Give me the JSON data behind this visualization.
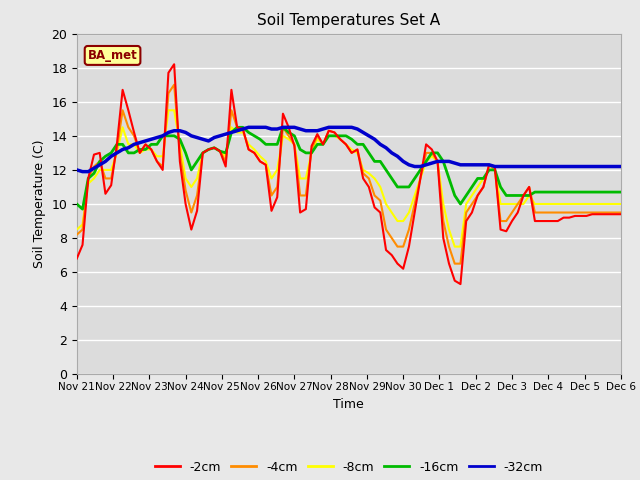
{
  "title": "Soil Temperatures Set A",
  "xlabel": "Time",
  "ylabel": "Soil Temperature (C)",
  "ylim": [
    0,
    20
  ],
  "yticks": [
    0,
    2,
    4,
    6,
    8,
    10,
    12,
    14,
    16,
    18,
    20
  ],
  "xtick_labels": [
    "Nov 21",
    "Nov 22",
    "Nov 23",
    "Nov 24",
    "Nov 25",
    "Nov 26",
    "Nov 27",
    "Nov 28",
    "Nov 29",
    "Nov 30",
    "Dec 1",
    "Dec 2",
    "Dec 3",
    "Dec 4",
    "Dec 5",
    "Dec 6"
  ],
  "fig_bg_color": "#e8e8e8",
  "plot_bg_color": "#dcdcdc",
  "grid_color": "#ffffff",
  "annotation_label": "BA_met",
  "annotation_bg": "#ffff99",
  "annotation_border": "#8b0000",
  "series_colors": {
    "-2cm": "#ff0000",
    "-4cm": "#ff8c00",
    "-8cm": "#ffff00",
    "-16cm": "#00bb00",
    "-32cm": "#0000cc"
  },
  "series_linewidths": {
    "-2cm": 1.5,
    "-4cm": 1.5,
    "-8cm": 1.5,
    "-16cm": 2.0,
    "-32cm": 2.5
  },
  "t_2cm": [
    6.8,
    7.6,
    11.5,
    12.9,
    13.0,
    10.6,
    11.1,
    13.5,
    16.7,
    15.5,
    14.2,
    13.0,
    13.5,
    13.2,
    12.5,
    12.0,
    17.7,
    18.2,
    12.5,
    10.0,
    8.5,
    9.6,
    13.0,
    13.2,
    13.3,
    13.1,
    12.2,
    16.7,
    14.5,
    14.4,
    13.2,
    13.0,
    12.5,
    12.3,
    9.6,
    10.4,
    15.3,
    14.5,
    13.4,
    9.5,
    9.7,
    13.4,
    14.1,
    13.5,
    14.3,
    14.2,
    13.8,
    13.5,
    13.0,
    13.2,
    11.5,
    11.0,
    9.8,
    9.5,
    7.3,
    7.0,
    6.5,
    6.2,
    7.5,
    9.5,
    11.5,
    13.5,
    13.2,
    12.5,
    8.0,
    6.5,
    5.5,
    5.3,
    9.0,
    9.5,
    10.5,
    11.0,
    12.3,
    12.2,
    8.5,
    8.4,
    9.0,
    9.5,
    10.5,
    11.0,
    9.0,
    9.0,
    9.0,
    9.0,
    9.0,
    9.2,
    9.2,
    9.3,
    9.3,
    9.3,
    9.4,
    9.4,
    9.4,
    9.4,
    9.4,
    9.4
  ],
  "t_4cm": [
    8.2,
    8.5,
    11.5,
    12.2,
    12.5,
    11.5,
    11.5,
    13.2,
    15.5,
    14.5,
    14.0,
    13.0,
    13.5,
    13.2,
    12.5,
    12.2,
    16.5,
    17.0,
    13.0,
    10.8,
    9.5,
    10.5,
    13.0,
    13.2,
    13.3,
    13.1,
    12.5,
    15.5,
    14.5,
    14.4,
    13.2,
    13.0,
    12.5,
    12.3,
    10.5,
    11.0,
    14.5,
    14.0,
    13.5,
    10.5,
    10.5,
    13.2,
    14.0,
    13.5,
    14.3,
    14.2,
    13.8,
    13.5,
    13.0,
    13.2,
    11.8,
    11.5,
    10.5,
    10.2,
    8.5,
    8.0,
    7.5,
    7.5,
    8.5,
    10.0,
    11.5,
    13.0,
    13.0,
    12.5,
    9.0,
    7.5,
    6.5,
    6.5,
    9.5,
    10.0,
    10.5,
    11.0,
    12.3,
    12.0,
    9.0,
    9.0,
    9.5,
    10.0,
    10.5,
    11.0,
    9.5,
    9.5,
    9.5,
    9.5,
    9.5,
    9.5,
    9.5,
    9.5,
    9.5,
    9.5,
    9.5,
    9.5,
    9.5,
    9.5,
    9.5,
    9.5
  ],
  "t_8cm": [
    8.5,
    8.8,
    11.2,
    11.5,
    12.0,
    12.0,
    12.0,
    13.0,
    14.5,
    13.5,
    13.5,
    13.0,
    13.2,
    13.2,
    12.8,
    12.8,
    15.5,
    15.5,
    13.5,
    11.5,
    11.0,
    11.5,
    13.0,
    13.2,
    13.3,
    13.1,
    12.8,
    14.5,
    14.2,
    14.2,
    13.5,
    13.2,
    12.8,
    12.5,
    11.5,
    12.0,
    14.0,
    13.8,
    13.5,
    11.5,
    11.5,
    13.0,
    13.8,
    13.5,
    14.0,
    14.0,
    13.8,
    13.5,
    13.2,
    13.0,
    12.0,
    11.8,
    11.5,
    11.0,
    10.0,
    9.5,
    9.0,
    9.0,
    9.5,
    10.5,
    11.5,
    12.5,
    12.8,
    12.5,
    10.0,
    8.5,
    7.5,
    7.5,
    10.0,
    10.5,
    11.0,
    11.5,
    12.0,
    12.0,
    10.0,
    10.0,
    10.0,
    10.0,
    10.0,
    10.5,
    10.0,
    10.0,
    10.0,
    10.0,
    10.0,
    10.0,
    10.0,
    10.0,
    10.0,
    10.0,
    10.0,
    10.0,
    10.0,
    10.0,
    10.0,
    10.0
  ],
  "t_16cm": [
    10.0,
    9.7,
    11.5,
    11.8,
    12.5,
    12.8,
    13.0,
    13.5,
    13.5,
    13.0,
    13.0,
    13.2,
    13.2,
    13.5,
    13.5,
    14.0,
    14.0,
    14.0,
    13.8,
    13.0,
    12.0,
    12.5,
    13.0,
    13.2,
    13.3,
    13.1,
    13.0,
    14.2,
    14.5,
    14.5,
    14.2,
    14.0,
    13.8,
    13.5,
    13.5,
    13.5,
    14.5,
    14.2,
    14.0,
    13.2,
    13.0,
    13.0,
    13.5,
    13.5,
    14.0,
    14.0,
    14.0,
    14.0,
    13.8,
    13.5,
    13.5,
    13.0,
    12.5,
    12.5,
    12.0,
    11.5,
    11.0,
    11.0,
    11.0,
    11.5,
    12.0,
    12.5,
    13.0,
    13.0,
    12.5,
    11.5,
    10.5,
    10.0,
    10.5,
    11.0,
    11.5,
    11.5,
    12.0,
    12.0,
    11.0,
    10.5,
    10.5,
    10.5,
    10.5,
    10.5,
    10.7,
    10.7,
    10.7,
    10.7,
    10.7,
    10.7,
    10.7,
    10.7,
    10.7,
    10.7,
    10.7,
    10.7,
    10.7,
    10.7,
    10.7,
    10.7
  ],
  "t_32cm": [
    12.0,
    11.9,
    11.9,
    12.1,
    12.3,
    12.5,
    12.8,
    13.0,
    13.2,
    13.3,
    13.5,
    13.6,
    13.7,
    13.8,
    13.9,
    14.0,
    14.2,
    14.3,
    14.3,
    14.2,
    14.0,
    13.9,
    13.8,
    13.7,
    13.9,
    14.0,
    14.1,
    14.2,
    14.3,
    14.4,
    14.5,
    14.5,
    14.5,
    14.5,
    14.4,
    14.4,
    14.5,
    14.5,
    14.5,
    14.4,
    14.3,
    14.3,
    14.3,
    14.4,
    14.5,
    14.5,
    14.5,
    14.5,
    14.5,
    14.4,
    14.2,
    14.0,
    13.8,
    13.5,
    13.3,
    13.0,
    12.8,
    12.5,
    12.3,
    12.2,
    12.2,
    12.3,
    12.4,
    12.5,
    12.5,
    12.5,
    12.4,
    12.3,
    12.3,
    12.3,
    12.3,
    12.3,
    12.3,
    12.2,
    12.2,
    12.2,
    12.2,
    12.2,
    12.2,
    12.2,
    12.2,
    12.2,
    12.2,
    12.2,
    12.2,
    12.2,
    12.2,
    12.2,
    12.2,
    12.2,
    12.2,
    12.2,
    12.2,
    12.2,
    12.2,
    12.2
  ]
}
